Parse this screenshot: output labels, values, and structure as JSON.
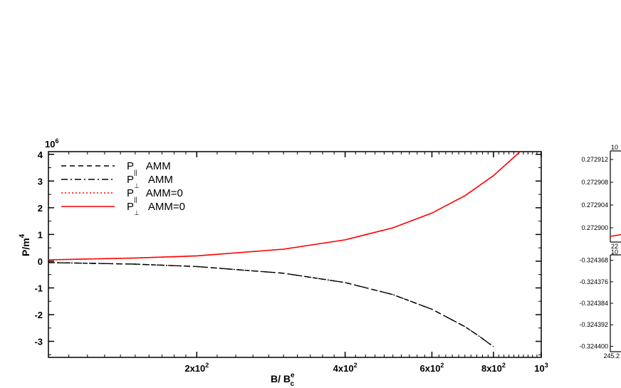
{
  "chart_data": [
    {
      "type": "line",
      "scale": "log-x",
      "xlabel": "B/ B",
      "xlabel_sup": "e",
      "xlabel_sub": "c",
      "ylabel": "P/m",
      "ylabel_sup": "4",
      "y_multiplier": "10",
      "y_multiplier_exp": "6",
      "xlim": [
        100,
        1000
      ],
      "ylim": [
        -3.6,
        4.1
      ],
      "x_ticks": [
        {
          "value": 200,
          "base": "2x10",
          "exp": "2"
        },
        {
          "value": 400,
          "base": "4x10",
          "exp": "2"
        },
        {
          "value": 600,
          "base": "6x10",
          "exp": "2"
        },
        {
          "value": 800,
          "base": "8x10",
          "exp": "2"
        },
        {
          "value": 1000,
          "base": "10",
          "exp": "3"
        }
      ],
      "y_ticks": [
        "4",
        "3",
        "2",
        "1",
        "0",
        "-1",
        "-2",
        "-3"
      ],
      "y_tick_values": [
        4,
        3,
        2,
        1,
        0,
        -1,
        -2,
        -3
      ],
      "legend_position": "top-left",
      "series": [
        {
          "name": "P",
          "sub": "||",
          "suffix": "AMM",
          "style": "dashed",
          "color": "#000000",
          "x": [
            100,
            150,
            200,
            300,
            400,
            500,
            600,
            700,
            750,
            800
          ],
          "y": [
            -0.05,
            -0.11,
            -0.2,
            -0.45,
            -0.8,
            -1.25,
            -1.8,
            -2.45,
            -2.82,
            -3.2
          ]
        },
        {
          "name": "P",
          "sub": "⊥",
          "suffix": "AMM",
          "style": "dashdot",
          "color": "#000000",
          "x": [
            100,
            150,
            200,
            300,
            400,
            500,
            600,
            700,
            750,
            800
          ],
          "y": [
            -0.05,
            -0.11,
            -0.2,
            -0.45,
            -0.8,
            -1.25,
            -1.8,
            -2.45,
            -2.82,
            -3.2
          ]
        },
        {
          "name": "P",
          "sub": "||",
          "suffix": "AMM=0",
          "style": "dotted",
          "color": "#ff0000",
          "x": [
            100,
            150,
            200,
            300,
            400,
            500,
            600,
            700,
            800,
            900,
            1000
          ],
          "y": [
            0.05,
            0.12,
            0.2,
            0.45,
            0.8,
            1.25,
            1.8,
            2.45,
            3.2,
            4.05,
            5.0
          ]
        },
        {
          "name": "P",
          "sub": "⊥",
          "suffix": "AMM=0",
          "style": "solid",
          "color": "#ff0000",
          "x": [
            100,
            150,
            200,
            300,
            400,
            500,
            600,
            700,
            800,
            900,
            1000
          ],
          "y": [
            0.05,
            0.12,
            0.2,
            0.45,
            0.8,
            1.25,
            1.8,
            2.45,
            3.2,
            4.05,
            5.0
          ]
        }
      ]
    },
    {
      "type": "line",
      "inset": "top-right",
      "y_multiplier": "10",
      "y_ticks": [
        "0.272912",
        "0.272908",
        "0.272904",
        "0.272900"
      ],
      "y_tick_values": [
        0.272912,
        0.272908,
        0.272904,
        0.2729
      ],
      "x_tick_partial": "22",
      "series": [
        {
          "color": "#ff0000",
          "style": "solid",
          "x": [
            0,
            1
          ],
          "y": [
            0.2728985,
            0.2728988
          ]
        }
      ]
    },
    {
      "type": "line",
      "inset": "bottom-right",
      "y_multiplier": "10",
      "y_ticks": [
        "-0.324368",
        "-0.324376",
        "-0.324384",
        "-0.324392",
        "-0.324400"
      ],
      "y_tick_values": [
        -0.324368,
        -0.324376,
        -0.324384,
        -0.324392,
        -0.3244
      ],
      "x_tick_partial": "245.2"
    }
  ]
}
